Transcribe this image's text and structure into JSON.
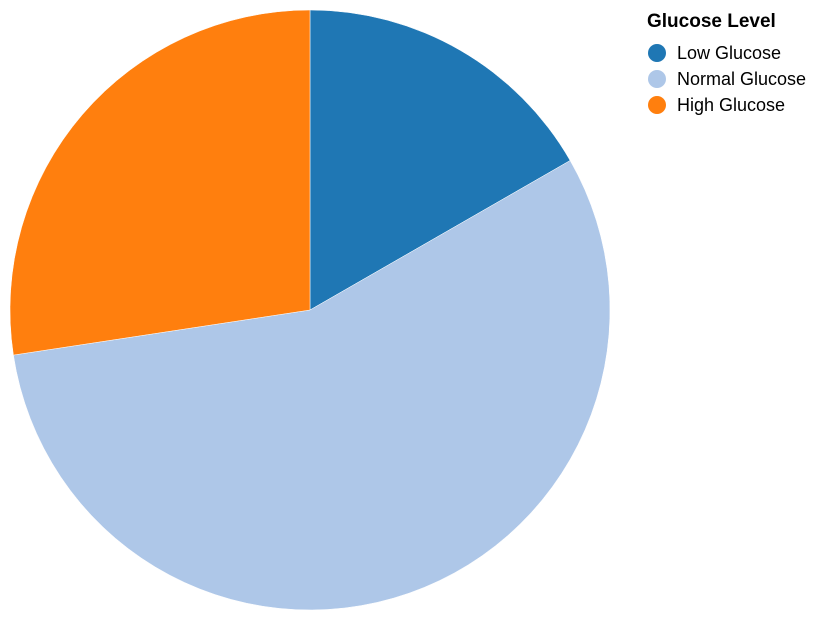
{
  "chart_data": {
    "type": "pie",
    "categories": [
      "Low Glucose",
      "Normal Glucose",
      "High Glucose"
    ],
    "values": [
      16.7,
      55.9,
      27.4
    ],
    "colors": [
      "#1f77b4",
      "#aec7e8",
      "#ff7f0e"
    ],
    "legend": {
      "title": "Glucose Level",
      "position": "top-right"
    }
  }
}
